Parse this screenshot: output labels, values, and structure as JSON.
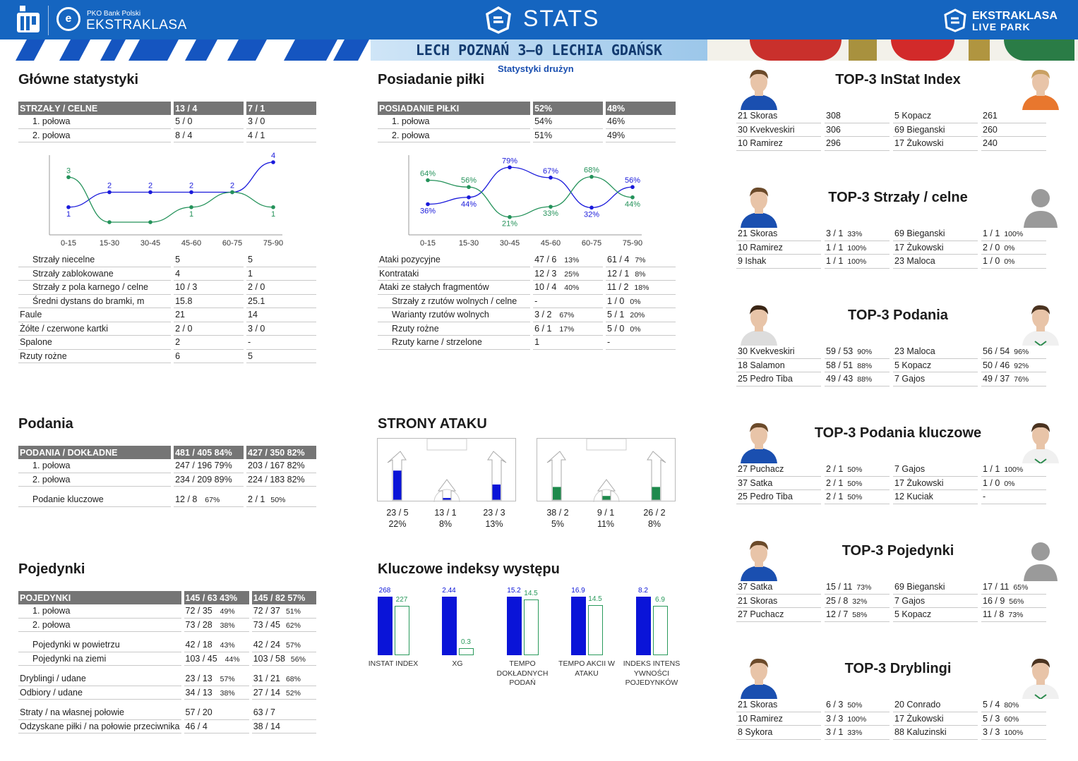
{
  "header": {
    "pko_small": "PKO Bank Polski",
    "league": "EKSTRAKLASA",
    "stats": "STATS",
    "right_logo_1": "EKSTRAKLASA",
    "right_logo_2": "LIVE PARK",
    "match": "LECH POZNAŃ 3–0 LECHIA GDAŃSK",
    "subtitle": "Statystyki drużyn"
  },
  "glowne": {
    "title": "Główne statystyki",
    "header": [
      "STRZAŁY / CELNE",
      "13 / 4",
      "7 / 1"
    ],
    "halves": [
      [
        "1. połowa",
        "5 / 0",
        "3 / 0"
      ],
      [
        "2. połowa",
        "8 / 4",
        "4 / 1"
      ]
    ],
    "rows": [
      [
        "Strzały niecelne",
        "5",
        "5",
        true
      ],
      [
        "Strzały zablokowane",
        "4",
        "1",
        true
      ],
      [
        "Strzały z pola karnego / celne",
        "10 / 3",
        "2 / 0",
        true
      ],
      [
        "Średni dystans do bramki, m",
        "15.8",
        "25.1",
        true
      ],
      [
        "Faule",
        "21",
        "14",
        false
      ],
      [
        "Żółte / czerwone kartki",
        "2 / 0",
        "3 / 0",
        false
      ],
      [
        "Spalone",
        "2",
        "-",
        false
      ],
      [
        "Rzuty rożne",
        "6",
        "5",
        false
      ]
    ]
  },
  "posiadanie": {
    "title": "Posiadanie piłki",
    "header": [
      "POSIADANIE PIŁKI",
      "52%",
      "48%"
    ],
    "halves": [
      [
        "1. połowa",
        "54%",
        "46%"
      ],
      [
        "2. połowa",
        "51%",
        "49%"
      ]
    ],
    "rows": [
      [
        "Ataki pozycyjne",
        "47 / 6",
        "13%",
        "61 / 4",
        "7%",
        false
      ],
      [
        "Kontrataki",
        "12 / 3",
        "25%",
        "12 / 1",
        "8%",
        false
      ],
      [
        "Ataki ze stałych fragmentów",
        "10 / 4",
        "40%",
        "11 / 2",
        "18%",
        false
      ],
      [
        "Strzały z rzutów wolnych / celne",
        "-",
        "",
        "1 / 0",
        "0%",
        true
      ],
      [
        "Warianty rzutów wolnych",
        "3 / 2",
        "67%",
        "5 / 1",
        "20%",
        true
      ],
      [
        "Rzuty rożne",
        "6 / 1",
        "17%",
        "5 / 0",
        "0%",
        true
      ],
      [
        "Rzuty karne / strzelone",
        "1",
        "",
        "-",
        "",
        true
      ]
    ]
  },
  "chart_data": [
    {
      "type": "line",
      "categories": [
        "0-15",
        "15-30",
        "30-45",
        "45-60",
        "60-75",
        "75-90"
      ],
      "series": [
        {
          "values": [
            1,
            2,
            2,
            2,
            2,
            4
          ],
          "color": "#1a1adb"
        },
        {
          "values": [
            3,
            0,
            0,
            1,
            2,
            1
          ],
          "color": "#24925a"
        }
      ],
      "labels_blue": [
        "1",
        "2",
        "2",
        "2",
        "2",
        "4"
      ],
      "labels_green": [
        "3",
        "",
        "",
        "1",
        "",
        "1"
      ],
      "ylim": [
        0,
        4
      ]
    },
    {
      "type": "line",
      "categories": [
        "0-15",
        "15-30",
        "30-45",
        "45-60",
        "60-75",
        "75-90"
      ],
      "series": [
        {
          "values": [
            36,
            44,
            79,
            67,
            32,
            56
          ],
          "color": "#1a1adb"
        },
        {
          "values": [
            64,
            56,
            21,
            33,
            68,
            44
          ],
          "color": "#24925a"
        }
      ],
      "labels_blue": [
        "36%",
        "44%",
        "79%",
        "67%",
        "32%",
        "56%"
      ],
      "labels_green": [
        "64%",
        "56%",
        "21%",
        "33%",
        "68%",
        "44%"
      ],
      "ylim": [
        15,
        85
      ]
    }
  ],
  "podania": {
    "title": "Podania",
    "header": [
      "PODANIA / DOKŁADNE",
      "481 / 405 84%",
      "427 / 350 82%"
    ],
    "halves": [
      [
        "1. połowa",
        "247 / 196 79%",
        "203 / 167 82%"
      ],
      [
        "2. połowa",
        "234 / 209 89%",
        "224 / 183 82%"
      ]
    ],
    "key": [
      "Podanie kluczowe",
      "12 / 8",
      "67%",
      "2 / 1",
      "50%"
    ]
  },
  "strony": {
    "title": "STRONY ATAKU",
    "home": [
      {
        "top": "23 / 5",
        "bot": "22%",
        "fill": 0.72
      },
      {
        "top": "13 / 1",
        "bot": "8%",
        "fill": 0.05
      },
      {
        "top": "23 / 3",
        "bot": "13%",
        "fill": 0.38
      }
    ],
    "away": [
      {
        "top": "38 / 2",
        "bot": "5%",
        "fill": 0.32
      },
      {
        "top": "9 / 1",
        "bot": "11%",
        "fill": 0.1
      },
      {
        "top": "26 / 2",
        "bot": "8%",
        "fill": 0.32
      }
    ],
    "home_color": "#0a14d8",
    "away_color": "#1e8a4c"
  },
  "pojedynki": {
    "title": "Pojedynki",
    "header": [
      "POJEDYNKI",
      "145 / 63 43%",
      "145 / 82 57%"
    ],
    "groups": [
      [
        [
          "1. połowa",
          "72 / 35",
          "49%",
          "72 / 37",
          "51%",
          true
        ],
        [
          "2. połowa",
          "73 / 28",
          "38%",
          "73 / 45",
          "62%",
          true
        ]
      ],
      [
        [
          "Pojedynki w powietrzu",
          "42 / 18",
          "43%",
          "42 / 24",
          "57%",
          true
        ],
        [
          "Pojedynki na ziemi",
          "103 / 45",
          "44%",
          "103 / 58",
          "56%",
          true
        ]
      ],
      [
        [
          "Dryblingi / udane",
          "23 / 13",
          "57%",
          "31 / 21",
          "68%",
          false
        ],
        [
          "Odbiory / udane",
          "34 / 13",
          "38%",
          "27 / 14",
          "52%",
          false
        ]
      ],
      [
        [
          "Straty / na własnej połowie",
          "57 / 20",
          "",
          "63 / 7",
          "",
          false
        ],
        [
          "Odzyskane piłki / na połowie przeciwnika",
          "46 / 4",
          "",
          "38 / 14",
          "",
          false
        ]
      ]
    ]
  },
  "kluczowe": {
    "title": "Kluczowe indeksy występu",
    "items": [
      {
        "label": "INSTAT INDEX",
        "home": 268,
        "away": 227,
        "hv": "268",
        "av": "227",
        "max": 268
      },
      {
        "label": "XG",
        "home": 2.44,
        "away": 0.3,
        "hv": "2.44",
        "av": "0.3",
        "max": 2.44
      },
      {
        "label": "TEMPO DOKŁADNYCH PODAŃ",
        "home": 15.2,
        "away": 14.5,
        "hv": "15.2",
        "av": "14.5",
        "max": 15.2
      },
      {
        "label": "TEMPO AKCII W ATAKU",
        "home": 16.9,
        "away": 14.5,
        "hv": "16.9",
        "av": "14.5",
        "max": 16.9
      },
      {
        "label": "INDEKS INTENS YWNOŚCI POJEDYNKÓW",
        "home": 8.2,
        "away": 6.9,
        "hv": "8.2",
        "av": "6.9",
        "max": 8.2
      }
    ]
  },
  "top": [
    {
      "title": "TOP-3 InStat Index",
      "rows": [
        [
          "21 Skoras",
          "308",
          "",
          "5  Kopacz",
          "261",
          ""
        ],
        [
          "30 Kvekveskiri",
          "306",
          "",
          "69 Bieganski",
          "260",
          ""
        ],
        [
          "10 Ramirez",
          "296",
          "",
          "17 Żukowski",
          "240",
          ""
        ]
      ],
      "left": "blue",
      "right": "orange"
    },
    {
      "title": "TOP-3 Strzały / celne",
      "rows": [
        [
          "21 Skoras",
          "3 / 1",
          "33%",
          "69 Bieganski",
          "1 / 1",
          "100%"
        ],
        [
          "10 Ramirez",
          "1 / 1",
          "100%",
          "17 Żukowski",
          "2 / 0",
          "0%"
        ],
        [
          "9  Ishak",
          "1 / 1",
          "100%",
          "23 Maloca",
          "1 / 0",
          "0%"
        ]
      ],
      "left": "blue",
      "right": "silhouette"
    },
    {
      "title": "TOP-3 Podania",
      "rows": [
        [
          "30 Kvekveskiri",
          "59 / 53",
          "90%",
          "23 Maloca",
          "56 / 54",
          "96%"
        ],
        [
          "18 Salamon",
          "58 / 51",
          "88%",
          "5  Kopacz",
          "50 / 46",
          "92%"
        ],
        [
          "25 Pedro Tiba",
          "49 / 43",
          "88%",
          "7  Gajos",
          "49 / 37",
          "76%"
        ]
      ],
      "left": "plain",
      "right": "white"
    },
    {
      "title": "TOP-3 Podania kluczowe",
      "rows": [
        [
          "27 Puchacz",
          "2 / 1",
          "50%",
          "7  Gajos",
          "1 / 1",
          "100%"
        ],
        [
          "37 Satka",
          "2 / 1",
          "50%",
          "17 Żukowski",
          "1 / 0",
          "0%"
        ],
        [
          "25 Pedro Tiba",
          "2 / 1",
          "50%",
          "12 Kuciak",
          "-",
          ""
        ]
      ],
      "left": "blue",
      "right": "white"
    },
    {
      "title": "TOP-3 Pojedynki",
      "rows": [
        [
          "37 Satka",
          "15 / 11",
          "73%",
          "69 Bieganski",
          "17 / 11",
          "65%"
        ],
        [
          "21 Skoras",
          "25 / 8",
          "32%",
          "7  Gajos",
          "16 / 9",
          "56%"
        ],
        [
          "27 Puchacz",
          "12 / 7",
          "58%",
          "5  Kopacz",
          "11 / 8",
          "73%"
        ]
      ],
      "left": "blue",
      "right": "silhouette"
    },
    {
      "title": "TOP-3 Dryblingi",
      "rows": [
        [
          "21 Skoras",
          "6 / 3",
          "50%",
          "20 Conrado",
          "5 / 4",
          "80%"
        ],
        [
          "10 Ramirez",
          "3 / 3",
          "100%",
          "17 Żukowski",
          "5 / 3",
          "60%"
        ],
        [
          "8  Sykora",
          "3 / 1",
          "33%",
          "88 Kaluzinski",
          "3 / 3",
          "100%"
        ]
      ],
      "left": "blue",
      "right": "white"
    }
  ]
}
